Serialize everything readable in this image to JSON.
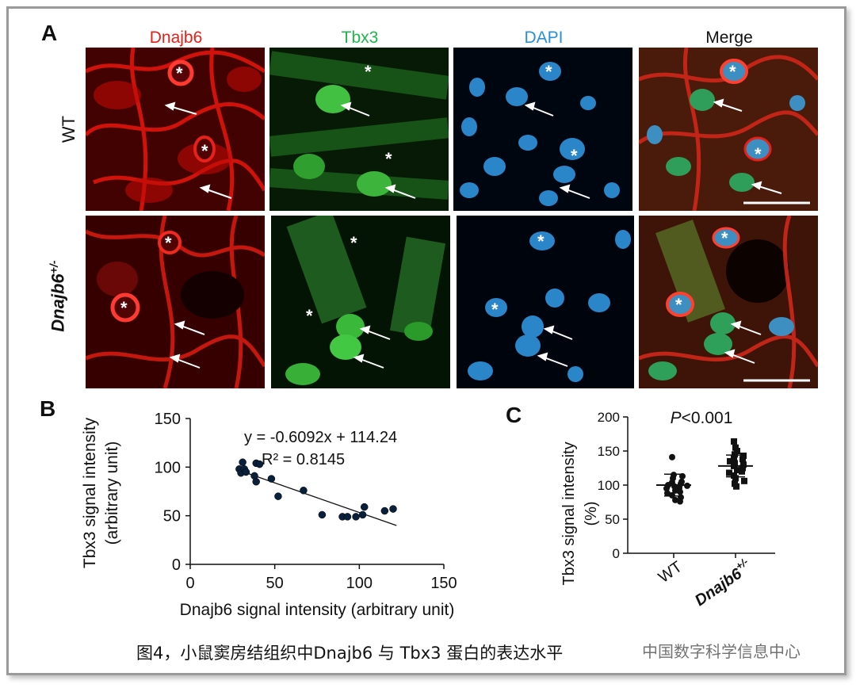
{
  "panel_a": {
    "letter": "A",
    "columns": [
      {
        "label": "Dnajb6",
        "color": "#e0201a"
      },
      {
        "label": "Tbx3",
        "color": "#1fb54a"
      },
      {
        "label": "DAPI",
        "color": "#2a8fd8"
      },
      {
        "label": "Merge",
        "color": "#111111"
      }
    ],
    "rows": [
      {
        "label": "WT"
      },
      {
        "label": "Dnajb6",
        "sup": "+/-"
      }
    ],
    "asterisk": "*"
  },
  "panel_b": {
    "letter": "B",
    "chart_data": {
      "type": "scatter",
      "xlabel": "Dnajb6 signal intensity (arbitrary unit)",
      "ylabel_line1": "Tbx3 signal intensity",
      "ylabel_line2": "(arbitrary unit)",
      "xlim": [
        0,
        150
      ],
      "ylim": [
        0,
        150
      ],
      "xticks": [
        0,
        50,
        100,
        150
      ],
      "yticks": [
        0,
        50,
        100,
        150
      ],
      "equation": "y = -0.6092x + 114.24",
      "r2": "R² = 0.8145",
      "trendline": {
        "slope": -0.6092,
        "intercept": 114.24,
        "x_range": [
          28,
          122
        ]
      },
      "points": [
        {
          "x": 29,
          "y": 98
        },
        {
          "x": 30,
          "y": 94
        },
        {
          "x": 31,
          "y": 105
        },
        {
          "x": 32,
          "y": 98
        },
        {
          "x": 33,
          "y": 95
        },
        {
          "x": 38,
          "y": 91
        },
        {
          "x": 39,
          "y": 104
        },
        {
          "x": 41,
          "y": 103
        },
        {
          "x": 39,
          "y": 85
        },
        {
          "x": 48,
          "y": 88
        },
        {
          "x": 52,
          "y": 70
        },
        {
          "x": 67,
          "y": 76
        },
        {
          "x": 78,
          "y": 51
        },
        {
          "x": 90,
          "y": 49
        },
        {
          "x": 93,
          "y": 49
        },
        {
          "x": 98,
          "y": 49
        },
        {
          "x": 102,
          "y": 51
        },
        {
          "x": 103,
          "y": 59
        },
        {
          "x": 115,
          "y": 55
        },
        {
          "x": 120,
          "y": 57
        }
      ]
    }
  },
  "panel_c": {
    "letter": "C",
    "chart_data": {
      "type": "scatter",
      "title_italic": "P",
      "title_rest": "<0.001",
      "ylabel_line1": "Tbx3 signal intensity",
      "ylabel_line2": "(%)",
      "ylim": [
        0,
        200
      ],
      "yticks": [
        0,
        50,
        100,
        150,
        200
      ],
      "categories": [
        "WT",
        "Dnajb6"
      ],
      "category_sup": [
        "",
        "+/-"
      ],
      "series": [
        {
          "values": [
            141,
            115,
            113,
            110,
            105,
            104,
            102,
            100,
            99,
            98,
            96,
            95,
            92,
            90,
            88,
            85,
            82,
            78,
            76
          ]
        },
        {
          "values": [
            164,
            155,
            150,
            145,
            143,
            140,
            138,
            135,
            132,
            130,
            128,
            125,
            122,
            120,
            118,
            114,
            110,
            106,
            102,
            98
          ]
        }
      ],
      "means": [
        100,
        128
      ],
      "sd": [
        16,
        16
      ]
    }
  },
  "caption": "图4，小鼠窦房结组织中Dnajb6 与 Tbx3 蛋白的表达水平",
  "watermark": "中国数字科学信息中心"
}
